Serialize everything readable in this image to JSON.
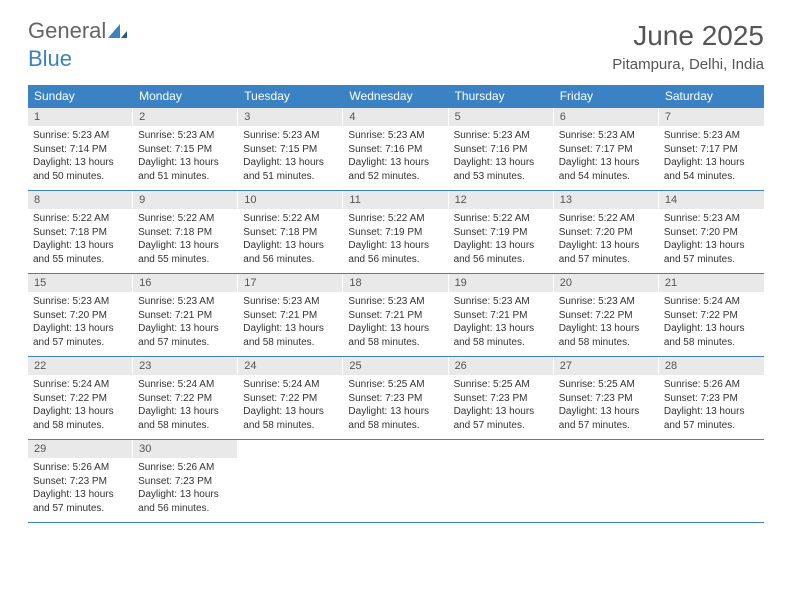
{
  "logo": {
    "text1": "General",
    "text2": "Blue"
  },
  "title": "June 2025",
  "location": "Pitampura, Delhi, India",
  "colors": {
    "header_bg": "#3b82c4",
    "daynum_bg": "#e9e9e9",
    "text_gray": "#555555",
    "body_text": "#333333",
    "page_bg": "#ffffff"
  },
  "weekdays": [
    "Sunday",
    "Monday",
    "Tuesday",
    "Wednesday",
    "Thursday",
    "Friday",
    "Saturday"
  ],
  "days": [
    {
      "n": "1",
      "sr": "Sunrise: 5:23 AM",
      "ss": "Sunset: 7:14 PM",
      "dl": "Daylight: 13 hours and 50 minutes."
    },
    {
      "n": "2",
      "sr": "Sunrise: 5:23 AM",
      "ss": "Sunset: 7:15 PM",
      "dl": "Daylight: 13 hours and 51 minutes."
    },
    {
      "n": "3",
      "sr": "Sunrise: 5:23 AM",
      "ss": "Sunset: 7:15 PM",
      "dl": "Daylight: 13 hours and 51 minutes."
    },
    {
      "n": "4",
      "sr": "Sunrise: 5:23 AM",
      "ss": "Sunset: 7:16 PM",
      "dl": "Daylight: 13 hours and 52 minutes."
    },
    {
      "n": "5",
      "sr": "Sunrise: 5:23 AM",
      "ss": "Sunset: 7:16 PM",
      "dl": "Daylight: 13 hours and 53 minutes."
    },
    {
      "n": "6",
      "sr": "Sunrise: 5:23 AM",
      "ss": "Sunset: 7:17 PM",
      "dl": "Daylight: 13 hours and 54 minutes."
    },
    {
      "n": "7",
      "sr": "Sunrise: 5:23 AM",
      "ss": "Sunset: 7:17 PM",
      "dl": "Daylight: 13 hours and 54 minutes."
    },
    {
      "n": "8",
      "sr": "Sunrise: 5:22 AM",
      "ss": "Sunset: 7:18 PM",
      "dl": "Daylight: 13 hours and 55 minutes."
    },
    {
      "n": "9",
      "sr": "Sunrise: 5:22 AM",
      "ss": "Sunset: 7:18 PM",
      "dl": "Daylight: 13 hours and 55 minutes."
    },
    {
      "n": "10",
      "sr": "Sunrise: 5:22 AM",
      "ss": "Sunset: 7:18 PM",
      "dl": "Daylight: 13 hours and 56 minutes."
    },
    {
      "n": "11",
      "sr": "Sunrise: 5:22 AM",
      "ss": "Sunset: 7:19 PM",
      "dl": "Daylight: 13 hours and 56 minutes."
    },
    {
      "n": "12",
      "sr": "Sunrise: 5:22 AM",
      "ss": "Sunset: 7:19 PM",
      "dl": "Daylight: 13 hours and 56 minutes."
    },
    {
      "n": "13",
      "sr": "Sunrise: 5:22 AM",
      "ss": "Sunset: 7:20 PM",
      "dl": "Daylight: 13 hours and 57 minutes."
    },
    {
      "n": "14",
      "sr": "Sunrise: 5:23 AM",
      "ss": "Sunset: 7:20 PM",
      "dl": "Daylight: 13 hours and 57 minutes."
    },
    {
      "n": "15",
      "sr": "Sunrise: 5:23 AM",
      "ss": "Sunset: 7:20 PM",
      "dl": "Daylight: 13 hours and 57 minutes."
    },
    {
      "n": "16",
      "sr": "Sunrise: 5:23 AM",
      "ss": "Sunset: 7:21 PM",
      "dl": "Daylight: 13 hours and 57 minutes."
    },
    {
      "n": "17",
      "sr": "Sunrise: 5:23 AM",
      "ss": "Sunset: 7:21 PM",
      "dl": "Daylight: 13 hours and 58 minutes."
    },
    {
      "n": "18",
      "sr": "Sunrise: 5:23 AM",
      "ss": "Sunset: 7:21 PM",
      "dl": "Daylight: 13 hours and 58 minutes."
    },
    {
      "n": "19",
      "sr": "Sunrise: 5:23 AM",
      "ss": "Sunset: 7:21 PM",
      "dl": "Daylight: 13 hours and 58 minutes."
    },
    {
      "n": "20",
      "sr": "Sunrise: 5:23 AM",
      "ss": "Sunset: 7:22 PM",
      "dl": "Daylight: 13 hours and 58 minutes."
    },
    {
      "n": "21",
      "sr": "Sunrise: 5:24 AM",
      "ss": "Sunset: 7:22 PM",
      "dl": "Daylight: 13 hours and 58 minutes."
    },
    {
      "n": "22",
      "sr": "Sunrise: 5:24 AM",
      "ss": "Sunset: 7:22 PM",
      "dl": "Daylight: 13 hours and 58 minutes."
    },
    {
      "n": "23",
      "sr": "Sunrise: 5:24 AM",
      "ss": "Sunset: 7:22 PM",
      "dl": "Daylight: 13 hours and 58 minutes."
    },
    {
      "n": "24",
      "sr": "Sunrise: 5:24 AM",
      "ss": "Sunset: 7:22 PM",
      "dl": "Daylight: 13 hours and 58 minutes."
    },
    {
      "n": "25",
      "sr": "Sunrise: 5:25 AM",
      "ss": "Sunset: 7:23 PM",
      "dl": "Daylight: 13 hours and 58 minutes."
    },
    {
      "n": "26",
      "sr": "Sunrise: 5:25 AM",
      "ss": "Sunset: 7:23 PM",
      "dl": "Daylight: 13 hours and 57 minutes."
    },
    {
      "n": "27",
      "sr": "Sunrise: 5:25 AM",
      "ss": "Sunset: 7:23 PM",
      "dl": "Daylight: 13 hours and 57 minutes."
    },
    {
      "n": "28",
      "sr": "Sunrise: 5:26 AM",
      "ss": "Sunset: 7:23 PM",
      "dl": "Daylight: 13 hours and 57 minutes."
    },
    {
      "n": "29",
      "sr": "Sunrise: 5:26 AM",
      "ss": "Sunset: 7:23 PM",
      "dl": "Daylight: 13 hours and 57 minutes."
    },
    {
      "n": "30",
      "sr": "Sunrise: 5:26 AM",
      "ss": "Sunset: 7:23 PM",
      "dl": "Daylight: 13 hours and 56 minutes."
    }
  ]
}
